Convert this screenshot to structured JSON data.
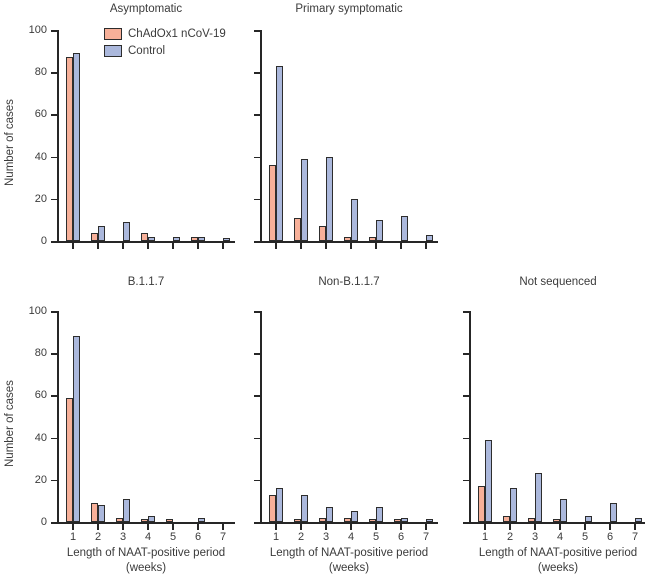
{
  "figure": {
    "y_axis_label": "Number of cases",
    "x_axis_label_line1": "Length of NAAT-positive period",
    "x_axis_label_line2": "(weeks)",
    "colors": {
      "chadox_fill": "#F7B099",
      "control_fill": "#ABB8DC",
      "bar_border": "#2D2D2D",
      "axis": "#262626",
      "text": "#3B3B3B"
    },
    "legend": [
      {
        "label": "ChAdOx1 nCoV-19",
        "color": "#F7B099"
      },
      {
        "label": "Control",
        "color": "#ABB8DC"
      }
    ]
  },
  "chart_data": [
    {
      "type": "bar",
      "title": "Asymptomatic",
      "categories": [
        "1",
        "2",
        "3",
        "4",
        "5",
        "6",
        "7"
      ],
      "series": [
        {
          "name": "ChAdOx1 nCoV-19",
          "values": [
            87,
            4,
            0,
            4,
            0,
            2,
            0
          ]
        },
        {
          "name": "Control",
          "values": [
            89,
            7,
            9,
            2,
            2,
            2,
            1
          ]
        }
      ],
      "ylim": [
        0,
        100
      ],
      "yticks": [
        0,
        20,
        40,
        60,
        80,
        100
      ],
      "show_y_tick_labels": true,
      "show_x_tick_labels": false,
      "show_y_axis_title": true,
      "show_x_axis_title": false,
      "has_legend": true,
      "legend_position": "upper-left-inside"
    },
    {
      "type": "bar",
      "title": "Primary symptomatic",
      "categories": [
        "1",
        "2",
        "3",
        "4",
        "5",
        "6",
        "7"
      ],
      "series": [
        {
          "name": "ChAdOx1 nCoV-19",
          "values": [
            36,
            11,
            7,
            2,
            2,
            0,
            0
          ]
        },
        {
          "name": "Control",
          "values": [
            83,
            39,
            40,
            20,
            10,
            12,
            3
          ]
        }
      ],
      "ylim": [
        0,
        100
      ],
      "yticks": [
        0,
        20,
        40,
        60,
        80,
        100
      ],
      "show_y_tick_labels": false,
      "show_x_tick_labels": false,
      "show_y_axis_title": false,
      "show_x_axis_title": false,
      "has_legend": false
    },
    {
      "type": "bar",
      "title": "B.1.1.7",
      "categories": [
        "1",
        "2",
        "3",
        "4",
        "5",
        "6",
        "7"
      ],
      "series": [
        {
          "name": "ChAdOx1 nCoV-19",
          "values": [
            59,
            9,
            2,
            1,
            1,
            0,
            0
          ]
        },
        {
          "name": "Control",
          "values": [
            88,
            8,
            11,
            3,
            0,
            2,
            0
          ]
        }
      ],
      "ylim": [
        0,
        100
      ],
      "yticks": [
        0,
        20,
        40,
        60,
        80,
        100
      ],
      "show_y_tick_labels": true,
      "show_x_tick_labels": true,
      "show_y_axis_title": true,
      "show_x_axis_title": true,
      "has_legend": false
    },
    {
      "type": "bar",
      "title": "Non-B.1.1.7",
      "categories": [
        "1",
        "2",
        "3",
        "4",
        "5",
        "6",
        "7"
      ],
      "series": [
        {
          "name": "ChAdOx1 nCoV-19",
          "values": [
            13,
            1,
            2,
            2,
            1,
            1,
            0
          ]
        },
        {
          "name": "Control",
          "values": [
            16,
            13,
            7,
            5,
            7,
            2,
            1
          ]
        }
      ],
      "ylim": [
        0,
        100
      ],
      "yticks": [
        0,
        20,
        40,
        60,
        80,
        100
      ],
      "show_y_tick_labels": false,
      "show_x_tick_labels": true,
      "show_y_axis_title": false,
      "show_x_axis_title": true,
      "has_legend": false
    },
    {
      "type": "bar",
      "title": "Not sequenced",
      "categories": [
        "1",
        "2",
        "3",
        "4",
        "5",
        "6",
        "7"
      ],
      "series": [
        {
          "name": "ChAdOx1 nCoV-19",
          "values": [
            17,
            3,
            2,
            1,
            0,
            0,
            0
          ]
        },
        {
          "name": "Control",
          "values": [
            39,
            16,
            23,
            11,
            3,
            9,
            2
          ]
        }
      ],
      "ylim": [
        0,
        100
      ],
      "yticks": [
        0,
        20,
        40,
        60,
        80,
        100
      ],
      "show_y_tick_labels": false,
      "show_x_tick_labels": true,
      "show_y_axis_title": false,
      "show_x_axis_title": true,
      "has_legend": false
    }
  ]
}
